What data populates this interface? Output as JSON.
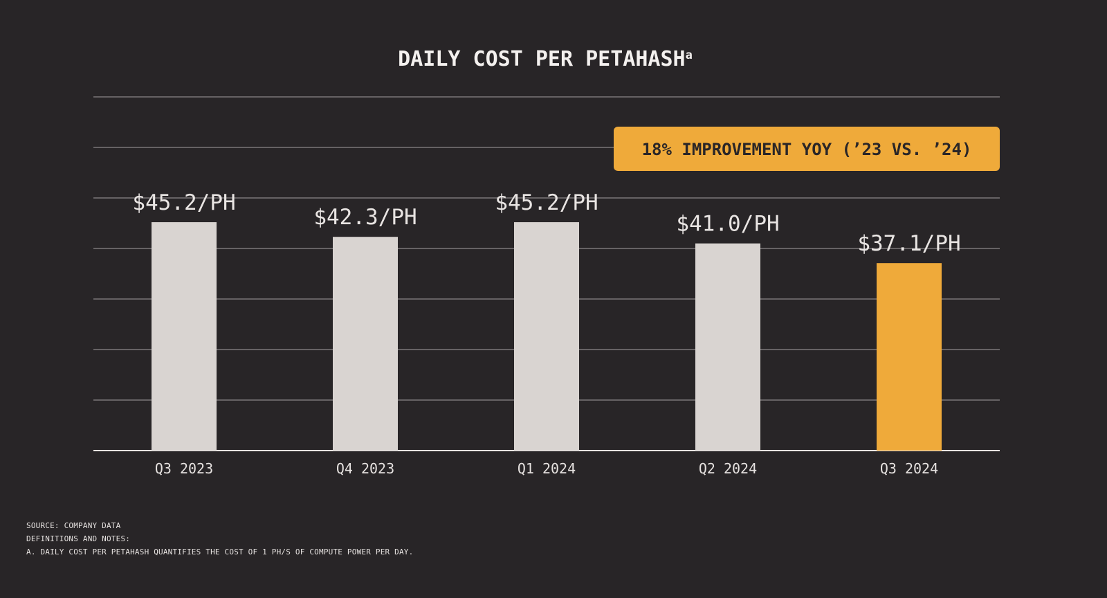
{
  "chart_data": {
    "type": "bar",
    "title": "DAILY COST PER PETAHASH",
    "title_superscript": "a",
    "categories": [
      "Q3 2023",
      "Q4 2023",
      "Q1 2024",
      "Q2 2024",
      "Q3 2024"
    ],
    "values": [
      45.2,
      42.3,
      45.2,
      41.0,
      37.1
    ],
    "data_labels": [
      "$45.2/PH",
      "$42.3/PH",
      "$45.2/PH",
      "$41.0/PH",
      "$37.1/PH"
    ],
    "highlight_index": 4,
    "ylim": [
      0,
      70
    ],
    "grid": true,
    "annotation": "18% IMPROVEMENT YOY (’23 VS. ’24)",
    "colors": {
      "bar": "#d9d4d1",
      "highlight": "#efaa3a",
      "background": "#282527",
      "grid": "#7a7678"
    }
  },
  "footnotes": {
    "source": "SOURCE: COMPANY DATA",
    "definitions_heading": "DEFINITIONS AND NOTES:",
    "note_a": "A. DAILY COST PER PETAHASH QUANTIFIES THE COST OF 1 PH/S OF COMPUTE POWER PER DAY."
  }
}
